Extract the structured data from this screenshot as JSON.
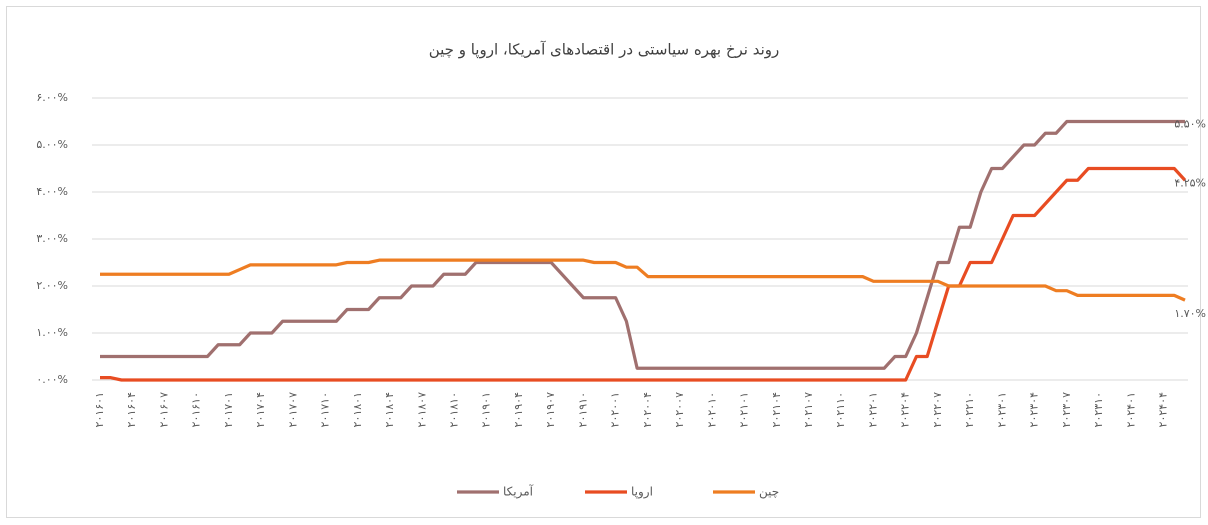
{
  "chart_data": {
    "type": "line",
    "title": "روند نرخ بهره سیاستی در اقتصادهای آمریکا، اروپا و چین",
    "categories": [
      "۲۰۱۶۰۱",
      null,
      null,
      "۲۰۱۶۰۴",
      null,
      null,
      "۲۰۱۶۰۷",
      null,
      null,
      "۲۰۱۶۱۰",
      null,
      null,
      "۲۰۱۷۰۱",
      null,
      null,
      "۲۰۱۷۰۴",
      null,
      null,
      "۲۰۱۷۰۷",
      null,
      null,
      "۲۰۱۷۱۰",
      null,
      null,
      "۲۰۱۸۰۱",
      null,
      null,
      "۲۰۱۸۰۴",
      null,
      null,
      "۲۰۱۸۰۷",
      null,
      null,
      "۲۰۱۸۱۰",
      null,
      null,
      "۲۰۱۹۰۱",
      null,
      null,
      "۲۰۱۹۰۴",
      null,
      null,
      "۲۰۱۹۰۷",
      null,
      null,
      "۲۰۱۹۱۰",
      null,
      null,
      "۲۰۲۰۰۱",
      null,
      null,
      "۲۰۲۰۰۴",
      null,
      null,
      "۲۰۲۰۰۷",
      null,
      null,
      "۲۰۲۰۱۰",
      null,
      null,
      "۲۰۲۱۰۱",
      null,
      null,
      "۲۰۲۱۰۴",
      null,
      null,
      "۲۰۲۱۰۷",
      null,
      null,
      "۲۰۲۱۱۰",
      null,
      null,
      "۲۰۲۲۰۱",
      null,
      null,
      "۲۰۲۲۰۴",
      null,
      null,
      "۲۰۲۲۰۷",
      null,
      null,
      "۲۰۲۲۱۰",
      null,
      null,
      "۲۰۲۳۰۱",
      null,
      null,
      "۲۰۲۳۰۴",
      null,
      null,
      "۲۰۲۳۰۷",
      null,
      null,
      "۲۰۲۳۱۰",
      null,
      null,
      "۲۰۲۴۰۱",
      null,
      null,
      "۲۰۲۴۰۴",
      null,
      null
    ],
    "series": [
      {
        "name": "آمریکا",
        "color": "#a0706f",
        "values": [
          0.5,
          0.5,
          0.5,
          0.5,
          0.5,
          0.5,
          0.5,
          0.5,
          0.5,
          0.5,
          0.5,
          0.75,
          0.75,
          0.75,
          1,
          1,
          1,
          1.25,
          1.25,
          1.25,
          1.25,
          1.25,
          1.25,
          1.5,
          1.5,
          1.5,
          1.75,
          1.75,
          1.75,
          2,
          2,
          2,
          2.25,
          2.25,
          2.25,
          2.5,
          2.5,
          2.5,
          2.5,
          2.5,
          2.5,
          2.5,
          2.5,
          2.25,
          2,
          1.75,
          1.75,
          1.75,
          1.75,
          1.25,
          0.25,
          0.25,
          0.25,
          0.25,
          0.25,
          0.25,
          0.25,
          0.25,
          0.25,
          0.25,
          0.25,
          0.25,
          0.25,
          0.25,
          0.25,
          0.25,
          0.25,
          0.25,
          0.25,
          0.25,
          0.25,
          0.25,
          0.25,
          0.25,
          0.5,
          0.5,
          1,
          1.75,
          2.5,
          2.5,
          3.25,
          3.25,
          4,
          4.5,
          4.5,
          4.75,
          5,
          5,
          5.25,
          5.25,
          5.5,
          5.5,
          5.5,
          5.5,
          5.5,
          5.5,
          5.5,
          5.5,
          5.5,
          5.5,
          5.5,
          5.5
        ],
        "value_labels": [
          null,
          null,
          null,
          null,
          null,
          null,
          null,
          null,
          null,
          null,
          null,
          null,
          null,
          null,
          null,
          null,
          null,
          null,
          null,
          null,
          null,
          null,
          null,
          null,
          null,
          null,
          null,
          null,
          null,
          null,
          null,
          null,
          null,
          null,
          null,
          null,
          null,
          null,
          null,
          null,
          null,
          null,
          null,
          null,
          null,
          null,
          null,
          null,
          null,
          null,
          null,
          null,
          null,
          null,
          null,
          null,
          null,
          null,
          null,
          null,
          null,
          null,
          null,
          null,
          null,
          null,
          null,
          null,
          null,
          null,
          null,
          null,
          null,
          null,
          null,
          null,
          null,
          null,
          null,
          null,
          null,
          null,
          null,
          null,
          null,
          null,
          null,
          null,
          null,
          null,
          null,
          null,
          null,
          null,
          null,
          null,
          null,
          null,
          null,
          null,
          null,
          "۵.۵۰%"
        ]
      },
      {
        "name": "اروپا",
        "color": "#e84c22",
        "values": [
          0.05,
          0.05,
          0,
          0,
          0,
          0,
          0,
          0,
          0,
          0,
          0,
          0,
          0,
          0,
          0,
          0,
          0,
          0,
          0,
          0,
          0,
          0,
          0,
          0,
          0,
          0,
          0,
          0,
          0,
          0,
          0,
          0,
          0,
          0,
          0,
          0,
          0,
          0,
          0,
          0,
          0,
          0,
          0,
          0,
          0,
          0,
          0,
          0,
          0,
          0,
          0,
          0,
          0,
          0,
          0,
          0,
          0,
          0,
          0,
          0,
          0,
          0,
          0,
          0,
          0,
          0,
          0,
          0,
          0,
          0,
          0,
          0,
          0,
          0,
          0,
          0,
          0.5,
          0.5,
          1.25,
          2,
          2,
          2.5,
          2.5,
          2.5,
          3,
          3.5,
          3.5,
          3.5,
          3.75,
          4,
          4.25,
          4.25,
          4.5,
          4.5,
          4.5,
          4.5,
          4.5,
          4.5,
          4.5,
          4.5,
          4.5,
          4.25
        ],
        "value_labels": [
          null,
          null,
          null,
          null,
          null,
          null,
          null,
          null,
          null,
          null,
          null,
          null,
          null,
          null,
          null,
          null,
          null,
          null,
          null,
          null,
          null,
          null,
          null,
          null,
          null,
          null,
          null,
          null,
          null,
          null,
          null,
          null,
          null,
          null,
          null,
          null,
          null,
          null,
          null,
          null,
          null,
          null,
          null,
          null,
          null,
          null,
          null,
          null,
          null,
          null,
          null,
          null,
          null,
          null,
          null,
          null,
          null,
          null,
          null,
          null,
          null,
          null,
          null,
          null,
          null,
          null,
          null,
          null,
          null,
          null,
          null,
          null,
          null,
          null,
          null,
          null,
          null,
          null,
          null,
          null,
          null,
          null,
          null,
          null,
          null,
          null,
          null,
          null,
          null,
          null,
          null,
          null,
          null,
          null,
          null,
          null,
          null,
          null,
          null,
          null,
          null,
          "۴.۲۵%"
        ]
      },
      {
        "name": "چین",
        "color": "#ee7d22",
        "values": [
          2.25,
          2.25,
          2.25,
          2.25,
          2.25,
          2.25,
          2.25,
          2.25,
          2.25,
          2.25,
          2.25,
          2.25,
          2.25,
          2.35,
          2.45,
          2.45,
          2.45,
          2.45,
          2.45,
          2.45,
          2.45,
          2.45,
          2.45,
          2.5,
          2.5,
          2.5,
          2.55,
          2.55,
          2.55,
          2.55,
          2.55,
          2.55,
          2.55,
          2.55,
          2.55,
          2.55,
          2.55,
          2.55,
          2.55,
          2.55,
          2.55,
          2.55,
          2.55,
          2.55,
          2.55,
          2.55,
          2.5,
          2.5,
          2.5,
          2.4,
          2.4,
          2.2,
          2.2,
          2.2,
          2.2,
          2.2,
          2.2,
          2.2,
          2.2,
          2.2,
          2.2,
          2.2,
          2.2,
          2.2,
          2.2,
          2.2,
          2.2,
          2.2,
          2.2,
          2.2,
          2.2,
          2.2,
          2.1,
          2.1,
          2.1,
          2.1,
          2.1,
          2.1,
          2.1,
          2,
          2,
          2,
          2,
          2,
          2,
          2,
          2,
          2,
          2,
          1.9,
          1.9,
          1.8,
          1.8,
          1.8,
          1.8,
          1.8,
          1.8,
          1.8,
          1.8,
          1.8,
          1.8,
          1.7
        ],
        "value_labels": [
          null,
          null,
          null,
          null,
          null,
          null,
          null,
          null,
          null,
          null,
          null,
          null,
          null,
          null,
          null,
          null,
          null,
          null,
          null,
          null,
          null,
          null,
          null,
          null,
          null,
          null,
          null,
          null,
          null,
          null,
          null,
          null,
          null,
          null,
          null,
          null,
          null,
          null,
          null,
          null,
          null,
          null,
          null,
          null,
          null,
          null,
          null,
          null,
          null,
          null,
          null,
          null,
          null,
          null,
          null,
          null,
          null,
          null,
          null,
          null,
          null,
          null,
          null,
          null,
          null,
          null,
          null,
          null,
          null,
          null,
          null,
          null,
          null,
          null,
          null,
          null,
          null,
          null,
          null,
          null,
          null,
          null,
          null,
          null,
          null,
          null,
          null,
          null,
          null,
          null,
          null,
          null,
          null,
          null,
          null,
          null,
          null,
          null,
          null,
          null,
          null,
          "۱.۷۰%"
        ]
      }
    ],
    "ylim": [
      0,
      6
    ],
    "yticks": [
      {
        "value": 0,
        "label": "۰.۰۰%"
      },
      {
        "value": 1,
        "label": "۱.۰۰%"
      },
      {
        "value": 2,
        "label": "۲.۰۰%"
      },
      {
        "value": 3,
        "label": "۳.۰۰%"
      },
      {
        "value": 4,
        "label": "۴.۰۰%"
      },
      {
        "value": 5,
        "label": "۵.۰۰%"
      },
      {
        "value": 6,
        "label": "۶.۰۰%"
      }
    ],
    "grid": true,
    "legend": "bottom"
  }
}
